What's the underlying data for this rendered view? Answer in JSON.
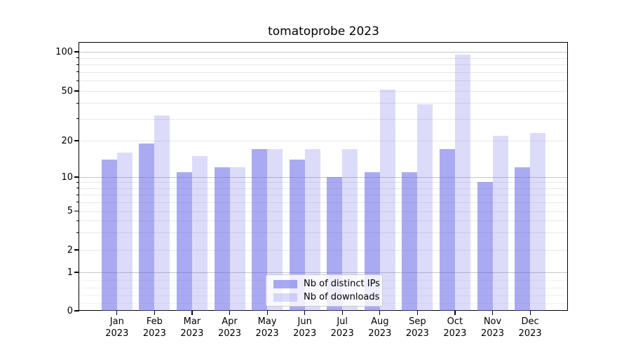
{
  "chart_data": {
    "type": "bar",
    "title": "tomatoprobe 2023",
    "categories": [
      "Jan 2023",
      "Feb 2023",
      "Mar 2023",
      "Apr 2023",
      "May 2023",
      "Jun 2023",
      "Jul 2023",
      "Aug 2023",
      "Sep 2023",
      "Oct 2023",
      "Nov 2023",
      "Dec 2023"
    ],
    "x_axis": {
      "months": [
        {
          "month": "Jan",
          "year": "2023"
        },
        {
          "month": "Feb",
          "year": "2023"
        },
        {
          "month": "Mar",
          "year": "2023"
        },
        {
          "month": "Apr",
          "year": "2023"
        },
        {
          "month": "May",
          "year": "2023"
        },
        {
          "month": "Jun",
          "year": "2023"
        },
        {
          "month": "Jul",
          "year": "2023"
        },
        {
          "month": "Aug",
          "year": "2023"
        },
        {
          "month": "Sep",
          "year": "2023"
        },
        {
          "month": "Oct",
          "year": "2023"
        },
        {
          "month": "Nov",
          "year": "2023"
        },
        {
          "month": "Dec",
          "year": "2023"
        }
      ]
    },
    "y_axis": {
      "scale": "symlog",
      "ylim": [
        0,
        118
      ],
      "labeled_ticks": [
        0,
        1,
        2,
        5,
        10,
        20,
        50,
        100
      ],
      "major_grid_values": [
        1,
        10,
        100
      ],
      "minor_grid_values": [
        0.2,
        0.4,
        0.6,
        0.8,
        2,
        3,
        4,
        5,
        6,
        7,
        8,
        9,
        20,
        30,
        40,
        50,
        60,
        70,
        80,
        90
      ]
    },
    "series": [
      {
        "name": "Nb of distinct IPs",
        "color": "rgba(92,92,232,0.52)",
        "values": [
          14,
          19,
          11,
          12,
          17,
          14,
          10,
          11,
          11,
          17,
          9,
          12
        ]
      },
      {
        "name": "Nb of downloads",
        "color": "rgba(92,92,232,0.21)",
        "values": [
          16,
          32,
          15,
          12,
          17,
          17,
          17,
          51,
          39,
          95,
          22,
          23
        ]
      }
    ],
    "legend": {
      "position": "lower center",
      "entries": [
        "Nb of distinct IPs",
        "Nb of downloads"
      ]
    },
    "grid": "on",
    "colors": {
      "grid_major": "#c6c6c6",
      "grid_minor": "#e8e8e8",
      "grid_sublinear": "#f1f1f1",
      "spine": "#000000",
      "background": "#ffffff"
    }
  }
}
